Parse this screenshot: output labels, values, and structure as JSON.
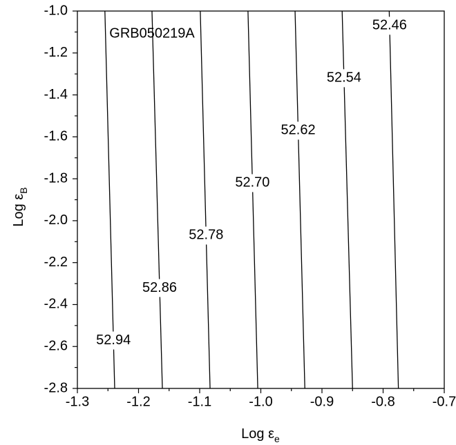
{
  "chart_data": {
    "type": "contour",
    "annotation": "GRB050219A",
    "xlabel": {
      "text": "Log ε",
      "subscript": "e"
    },
    "ylabel": {
      "text": "Log ε",
      "subscript": "B"
    },
    "xlim": [
      -1.3,
      -0.7
    ],
    "ylim": [
      -2.8,
      -1.0
    ],
    "xticks": [
      -1.3,
      -1.2,
      -1.1,
      {
        "value": -1.0,
        "label": "-1.0"
      },
      -0.9,
      -0.8,
      -0.7
    ],
    "yticks": [
      -2.8,
      -2.6,
      -2.4,
      -2.2,
      {
        "value": -2.0,
        "label": "-2.0"
      },
      -1.8,
      -1.6,
      -1.4,
      -1.2,
      {
        "value": -1.0,
        "label": "-1.0"
      }
    ],
    "color": "#000000",
    "contours": [
      {
        "level": 52.94,
        "label": "52.94",
        "x": [
          -1.255,
          -1.239
        ],
        "y": [
          -1.0,
          -2.8
        ]
      },
      {
        "level": 52.86,
        "label": "52.86",
        "x": [
          -1.178,
          -1.161
        ],
        "y": [
          -1.0,
          -2.8
        ]
      },
      {
        "level": 52.78,
        "label": "52.78",
        "x": [
          -1.099,
          -1.083
        ],
        "y": [
          -1.0,
          -2.8
        ]
      },
      {
        "level": 52.7,
        "label": "52.70",
        "x": [
          -1.021,
          -1.005
        ],
        "y": [
          -1.0,
          -2.8
        ]
      },
      {
        "level": 52.62,
        "label": "52.62",
        "x": [
          -0.944,
          -0.928
        ],
        "y": [
          -1.0,
          -2.8
        ]
      },
      {
        "level": 52.54,
        "label": "52.54",
        "x": [
          -0.867,
          -0.85
        ],
        "y": [
          -1.0,
          -2.8
        ]
      },
      {
        "level": 52.46,
        "label": "52.46",
        "x": [
          -0.79,
          -0.775
        ],
        "y": [
          -1.0,
          -2.8
        ]
      }
    ]
  }
}
